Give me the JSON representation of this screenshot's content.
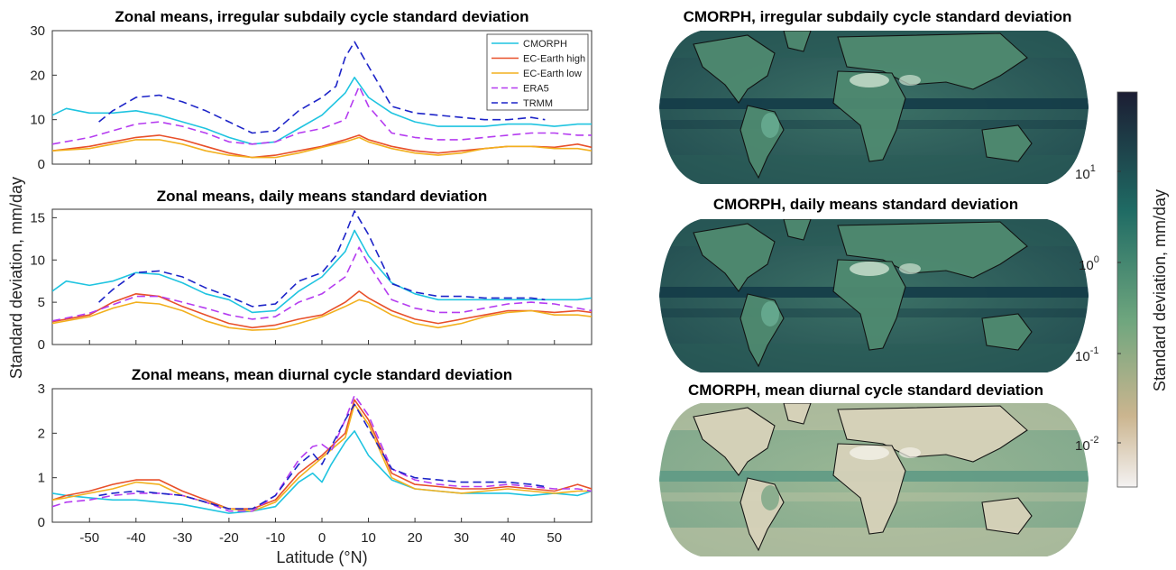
{
  "colors": {
    "CMORPH": "#1fc4e0",
    "EC-Earth high": "#e8502a",
    "EC-Earth low": "#f2b01e",
    "ERA5": "#b53cf0",
    "TRMM": "#1d24c8",
    "ocean_dark": "#1a4f4f",
    "land": "#4a7d68"
  },
  "shared": {
    "ylabel": "Standard deviation, mm/day",
    "xlabel": "Latitude (°N)",
    "xticks": [
      -50,
      -40,
      -30,
      -20,
      -10,
      0,
      10,
      20,
      30,
      40,
      50
    ],
    "legend": [
      "CMORPH",
      "EC-Earth high",
      "EC-Earth low",
      "ERA5",
      "TRMM"
    ]
  },
  "maps": {
    "titles": [
      "CMORPH, irregular subdaily cycle standard deviation",
      "CMORPH, daily means standard deviation",
      "CMORPH, mean diurnal cycle standard deviation"
    ]
  },
  "colorbar": {
    "label": "Standard deviation, mm/day",
    "ticks": [
      {
        "base": "10",
        "exp": "1"
      },
      {
        "base": "10",
        "exp": "0"
      },
      {
        "base": "10",
        "exp": "-1"
      },
      {
        "base": "10",
        "exp": "-2"
      }
    ]
  },
  "chart_data": [
    {
      "type": "line",
      "title": "Zonal means, irregular subdaily cycle standard deviation",
      "xlim": [
        -58,
        58
      ],
      "ylim": [
        0,
        30
      ],
      "yticks": [
        0,
        10,
        20,
        30
      ],
      "legend_position": "top-right",
      "series": [
        {
          "name": "CMORPH",
          "style": "solid",
          "x": [
            -58,
            -55,
            -50,
            -45,
            -40,
            -35,
            -30,
            -25,
            -20,
            -15,
            -10,
            -5,
            0,
            5,
            7,
            10,
            15,
            20,
            25,
            30,
            35,
            40,
            45,
            50,
            55,
            58
          ],
          "y": [
            11,
            12.5,
            11.5,
            11.5,
            12,
            11,
            9.5,
            8,
            6,
            4.5,
            5,
            8,
            11,
            16,
            19.5,
            15,
            11.5,
            9.5,
            8.5,
            8.5,
            8.5,
            9,
            9,
            8.5,
            9,
            9
          ]
        },
        {
          "name": "EC-Earth high",
          "style": "solid",
          "x": [
            -58,
            -50,
            -45,
            -40,
            -35,
            -30,
            -25,
            -20,
            -15,
            -10,
            -5,
            0,
            5,
            8,
            10,
            15,
            20,
            25,
            30,
            35,
            40,
            45,
            50,
            55,
            58
          ],
          "y": [
            3,
            4,
            5,
            6,
            6.5,
            5.5,
            4,
            2.5,
            1.5,
            2,
            3,
            4,
            5.5,
            6.5,
            5.5,
            4,
            3,
            2.5,
            3,
            3.5,
            4,
            4,
            3.8,
            4.5,
            3.8
          ]
        },
        {
          "name": "EC-Earth low",
          "style": "solid",
          "x": [
            -58,
            -50,
            -45,
            -40,
            -35,
            -30,
            -25,
            -20,
            -15,
            -10,
            -5,
            0,
            5,
            8,
            10,
            15,
            20,
            25,
            30,
            35,
            40,
            45,
            50,
            55,
            58
          ],
          "y": [
            3,
            3.5,
            4.5,
            5.5,
            5.5,
            4.5,
            3,
            2,
            1.5,
            1.5,
            2.5,
            3.8,
            5,
            6,
            5,
            3.5,
            2.5,
            2,
            2.5,
            3.5,
            4,
            4,
            3.5,
            3.5,
            3
          ]
        },
        {
          "name": "ERA5",
          "style": "dashed",
          "x": [
            -58,
            -50,
            -45,
            -40,
            -35,
            -30,
            -25,
            -20,
            -15,
            -10,
            -5,
            0,
            5,
            8,
            10,
            15,
            20,
            25,
            30,
            35,
            40,
            45,
            50,
            55,
            58
          ],
          "y": [
            4.5,
            6,
            7.5,
            9,
            9.5,
            8.5,
            7,
            5,
            4.5,
            5,
            7,
            8,
            10,
            17.5,
            13,
            7,
            6,
            5.5,
            5.5,
            6,
            6.5,
            7,
            7,
            6.5,
            6.5
          ]
        },
        {
          "name": "TRMM",
          "style": "dashed",
          "x": [
            -48,
            -45,
            -40,
            -35,
            -30,
            -25,
            -20,
            -15,
            -10,
            -5,
            0,
            3,
            5,
            7,
            10,
            15,
            20,
            25,
            30,
            35,
            40,
            45,
            48
          ],
          "y": [
            9.5,
            12,
            15,
            15.5,
            14,
            12,
            9.5,
            7,
            7.5,
            12,
            15,
            17.5,
            24,
            27.5,
            22,
            13,
            11.5,
            11,
            10.5,
            10,
            10,
            10.5,
            10
          ]
        }
      ]
    },
    {
      "type": "line",
      "title": "Zonal means, daily means standard deviation",
      "xlim": [
        -58,
        58
      ],
      "ylim": [
        0,
        16
      ],
      "yticks": [
        0,
        5,
        10,
        15
      ],
      "series": [
        {
          "name": "CMORPH",
          "style": "solid",
          "x": [
            -58,
            -55,
            -50,
            -45,
            -40,
            -35,
            -30,
            -25,
            -20,
            -15,
            -10,
            -5,
            0,
            5,
            7,
            10,
            15,
            20,
            25,
            30,
            35,
            40,
            45,
            50,
            55,
            58
          ],
          "y": [
            6.3,
            7.5,
            7,
            7.5,
            8.5,
            8.3,
            7.3,
            6,
            5.3,
            3.8,
            4,
            6.3,
            8,
            11,
            13.5,
            10.5,
            7.3,
            6,
            5.3,
            5.3,
            5.3,
            5.3,
            5.3,
            5.3,
            5.3,
            5.5
          ]
        },
        {
          "name": "EC-Earth high",
          "style": "solid",
          "x": [
            -58,
            -50,
            -45,
            -40,
            -35,
            -30,
            -25,
            -20,
            -15,
            -10,
            -5,
            0,
            5,
            8,
            10,
            15,
            20,
            25,
            30,
            35,
            40,
            45,
            50,
            55,
            58
          ],
          "y": [
            2.7,
            3.5,
            5,
            6,
            5.7,
            4.5,
            3.5,
            2.5,
            2,
            2.3,
            3,
            3.5,
            5,
            6.3,
            5.5,
            4,
            3,
            2.5,
            3,
            3.5,
            4,
            4,
            3.8,
            4,
            3.8
          ]
        },
        {
          "name": "EC-Earth low",
          "style": "solid",
          "x": [
            -58,
            -50,
            -45,
            -40,
            -35,
            -30,
            -25,
            -20,
            -15,
            -10,
            -5,
            0,
            5,
            8,
            10,
            15,
            20,
            25,
            30,
            35,
            40,
            45,
            50,
            55,
            58
          ],
          "y": [
            2.5,
            3.3,
            4.3,
            5,
            4.8,
            4,
            2.8,
            2,
            1.7,
            1.8,
            2.5,
            3.3,
            4.5,
            5.3,
            5,
            3.5,
            2.5,
            2,
            2.5,
            3.3,
            3.8,
            4,
            3.5,
            3.5,
            3.3
          ]
        },
        {
          "name": "ERA5",
          "style": "dashed",
          "x": [
            -58,
            -50,
            -45,
            -40,
            -35,
            -30,
            -25,
            -20,
            -15,
            -10,
            -5,
            0,
            5,
            8,
            10,
            15,
            20,
            25,
            30,
            35,
            40,
            45,
            50,
            55,
            58
          ],
          "y": [
            2.8,
            3.7,
            4.7,
            5.7,
            5.7,
            5,
            4.3,
            3.5,
            3,
            3.3,
            5,
            6,
            8,
            11.5,
            9.5,
            5.3,
            4.3,
            3.8,
            3.8,
            4.3,
            4.8,
            5,
            4.8,
            4.3,
            4
          ]
        },
        {
          "name": "TRMM",
          "style": "dashed",
          "x": [
            -48,
            -45,
            -40,
            -35,
            -30,
            -25,
            -20,
            -15,
            -10,
            -5,
            0,
            3,
            5,
            7,
            10,
            15,
            20,
            25,
            30,
            35,
            40,
            45,
            48
          ],
          "y": [
            5,
            6.5,
            8.5,
            8.7,
            8,
            6.7,
            5.7,
            4.5,
            4.8,
            7.5,
            8.5,
            10.5,
            13,
            15.8,
            13,
            7.2,
            6.2,
            5.7,
            5.7,
            5.5,
            5.5,
            5.5,
            5.3
          ]
        }
      ]
    },
    {
      "type": "line",
      "title": "Zonal means, mean diurnal cycle standard deviation",
      "xlim": [
        -58,
        58
      ],
      "ylim": [
        0,
        3
      ],
      "yticks": [
        0,
        1,
        2,
        3
      ],
      "series": [
        {
          "name": "CMORPH",
          "style": "solid",
          "x": [
            -58,
            -55,
            -50,
            -45,
            -40,
            -35,
            -30,
            -25,
            -20,
            -15,
            -10,
            -5,
            -2,
            0,
            2,
            5,
            7,
            10,
            15,
            20,
            25,
            30,
            35,
            40,
            45,
            50,
            55,
            58
          ],
          "y": [
            0.65,
            0.6,
            0.55,
            0.5,
            0.5,
            0.45,
            0.4,
            0.3,
            0.2,
            0.25,
            0.35,
            0.9,
            1.1,
            0.9,
            1.3,
            1.8,
            2.05,
            1.5,
            0.95,
            0.75,
            0.7,
            0.65,
            0.65,
            0.65,
            0.6,
            0.65,
            0.6,
            0.7
          ]
        },
        {
          "name": "EC-Earth high",
          "style": "solid",
          "x": [
            -58,
            -55,
            -50,
            -45,
            -40,
            -35,
            -30,
            -25,
            -20,
            -15,
            -10,
            -5,
            0,
            5,
            7,
            10,
            15,
            20,
            25,
            30,
            35,
            40,
            45,
            50,
            55,
            58
          ],
          "y": [
            0.5,
            0.6,
            0.7,
            0.85,
            0.95,
            0.95,
            0.7,
            0.5,
            0.3,
            0.3,
            0.5,
            1.1,
            1.5,
            2,
            2.75,
            2.3,
            1.1,
            0.85,
            0.8,
            0.75,
            0.75,
            0.8,
            0.75,
            0.7,
            0.85,
            0.75
          ]
        },
        {
          "name": "EC-Earth low",
          "style": "solid",
          "x": [
            -58,
            -55,
            -50,
            -45,
            -40,
            -35,
            -30,
            -25,
            -20,
            -15,
            -10,
            -5,
            0,
            5,
            7,
            10,
            15,
            20,
            25,
            30,
            35,
            40,
            45,
            50,
            55,
            58
          ],
          "y": [
            0.5,
            0.55,
            0.65,
            0.75,
            0.9,
            0.85,
            0.6,
            0.45,
            0.3,
            0.25,
            0.45,
            1.0,
            1.45,
            1.9,
            2.65,
            2.2,
            1.0,
            0.75,
            0.7,
            0.65,
            0.7,
            0.75,
            0.7,
            0.65,
            0.7,
            0.7
          ]
        },
        {
          "name": "ERA5",
          "style": "dashed",
          "x": [
            -58,
            -55,
            -50,
            -45,
            -40,
            -35,
            -30,
            -25,
            -20,
            -15,
            -10,
            -5,
            -2,
            0,
            2,
            5,
            7,
            10,
            15,
            20,
            25,
            30,
            35,
            40,
            45,
            50,
            55,
            58
          ],
          "y": [
            0.35,
            0.45,
            0.5,
            0.6,
            0.65,
            0.65,
            0.6,
            0.45,
            0.25,
            0.25,
            0.6,
            1.4,
            1.7,
            1.75,
            1.6,
            2.3,
            2.85,
            2.4,
            1.2,
            0.95,
            0.85,
            0.8,
            0.8,
            0.85,
            0.8,
            0.75,
            0.75,
            0.7
          ]
        },
        {
          "name": "TRMM",
          "style": "dashed",
          "x": [
            -48,
            -45,
            -40,
            -35,
            -30,
            -25,
            -20,
            -15,
            -10,
            -5,
            -2,
            0,
            2,
            5,
            7,
            10,
            15,
            20,
            25,
            30,
            35,
            40,
            45,
            48
          ],
          "y": [
            0.6,
            0.65,
            0.7,
            0.65,
            0.6,
            0.45,
            0.3,
            0.3,
            0.6,
            1.3,
            1.55,
            1.3,
            1.7,
            2.3,
            2.65,
            2.1,
            1.2,
            1.0,
            0.95,
            0.9,
            0.9,
            0.9,
            0.85,
            0.8
          ]
        }
      ]
    }
  ]
}
